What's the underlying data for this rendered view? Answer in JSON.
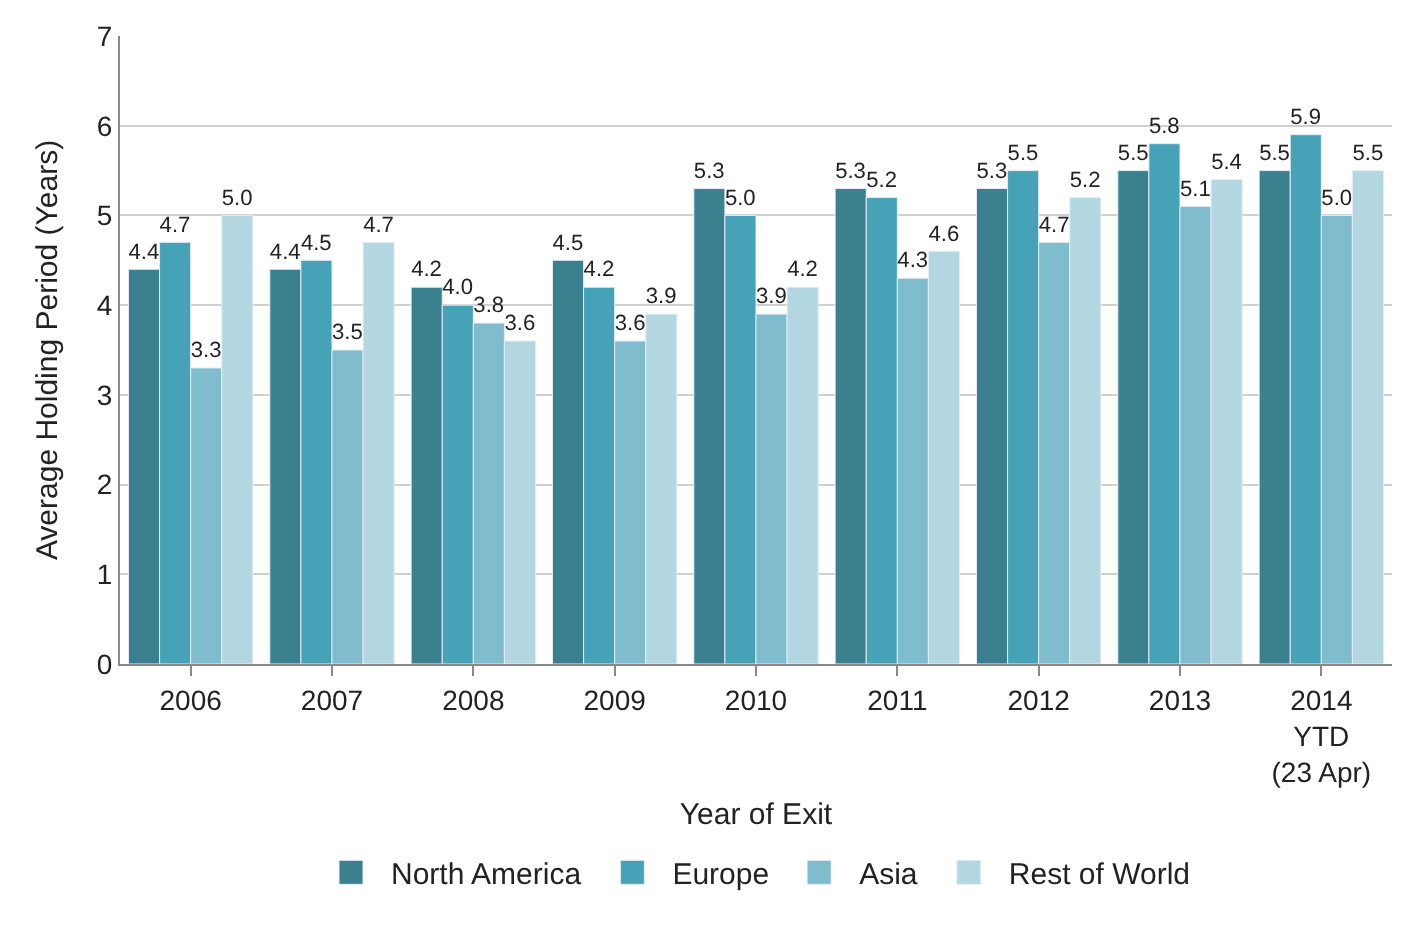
{
  "chart_data": {
    "type": "bar",
    "xlabel": "Year of Exit",
    "ylabel": "Average Holding Period (Years)",
    "categories": [
      "2006",
      "2007",
      "2008",
      "2009",
      "2010",
      "2011",
      "2012",
      "2013",
      "2014\nYTD\n(23 Apr)"
    ],
    "series": [
      {
        "name": "North America",
        "color": "#3a808f",
        "values": [
          4.4,
          4.4,
          4.2,
          4.5,
          5.3,
          5.3,
          5.3,
          5.5,
          5.5
        ],
        "value_labels": [
          "4.4",
          "4.4",
          "4.2",
          "4.5",
          "5.3",
          "5.3",
          "5.3",
          "5.5",
          "5.5"
        ]
      },
      {
        "name": "Europe",
        "color": "#46a2b6",
        "values": [
          4.7,
          4.5,
          4.0,
          4.2,
          5.0,
          5.2,
          5.5,
          5.8,
          5.9
        ],
        "value_labels": [
          "4.7",
          "4.5",
          "4.0",
          "4.2",
          "5.0",
          "5.2",
          "5.5",
          "5.8",
          "5.9"
        ]
      },
      {
        "name": "Asia",
        "color": "#7fbccd",
        "values": [
          3.3,
          3.5,
          3.8,
          3.6,
          3.9,
          4.3,
          4.7,
          5.1,
          5.0
        ],
        "value_labels": [
          "3.3",
          "3.5",
          "3.8",
          "3.6",
          "3.9",
          "4.3",
          "4.7",
          "5.1",
          "5.0"
        ]
      },
      {
        "name": "Rest of World",
        "color": "#b3d7e1",
        "values": [
          5.0,
          4.7,
          3.6,
          3.9,
          4.2,
          4.6,
          5.2,
          5.4,
          5.5
        ],
        "value_labels": [
          "5.0",
          "4.7",
          "3.6",
          "3.9",
          "4.2",
          "4.6",
          "5.2",
          "5.4",
          "5.5"
        ]
      }
    ],
    "ylim": [
      0,
      7
    ],
    "yticks": [
      0,
      1,
      2,
      3,
      4,
      5,
      6,
      7
    ],
    "grid": "y",
    "legend": "bottom"
  }
}
